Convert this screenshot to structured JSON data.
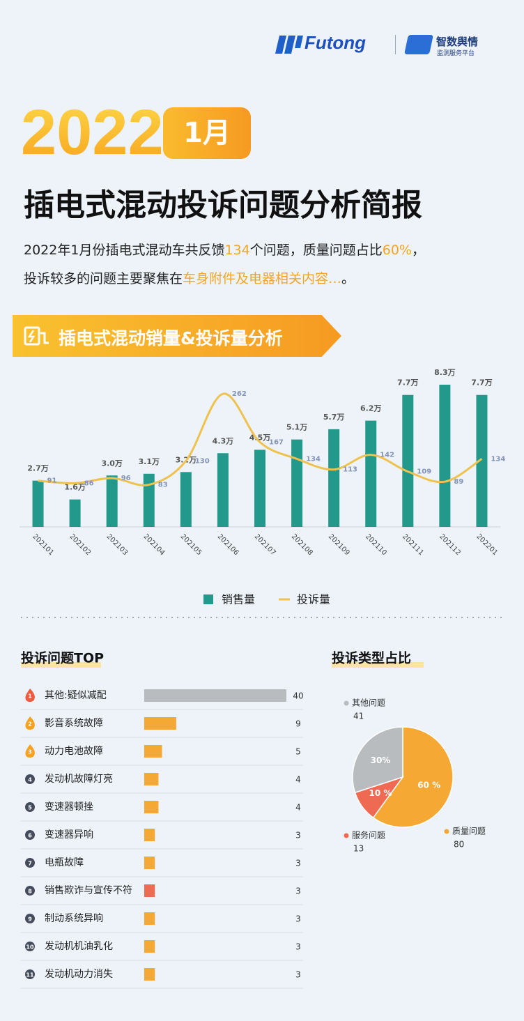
{
  "header": {
    "brand": "Futong",
    "platform_name": "智数舆情",
    "platform_sub": "监测服务平台",
    "year": "2022",
    "month": "1月",
    "title": "插电式混动投诉问题分析简报"
  },
  "summary": {
    "line1": [
      "2022年1月份插电式混动车共反馈",
      "134",
      "个问题，质量问题占比",
      "60%",
      "，"
    ],
    "line2": [
      "投诉较多的问题主要聚焦在",
      "车身附件及电器相关内容…",
      "。"
    ]
  },
  "section_title": "插电式混动销量&投诉量分析",
  "chart_data": [
    {
      "type": "combo",
      "categories": [
        "202101",
        "202102",
        "202103",
        "202104",
        "202105",
        "202106",
        "202107",
        "202108",
        "202109",
        "202110",
        "202111",
        "202112",
        "202201"
      ],
      "series": [
        {
          "name": "销售量",
          "type": "bar",
          "color": "#23998c",
          "values": [
            2.7,
            1.6,
            3.0,
            3.1,
            3.2,
            4.3,
            4.5,
            5.1,
            5.7,
            6.2,
            7.7,
            8.3,
            7.7
          ],
          "value_labels": [
            "2.7万",
            "1.6万",
            "3.0万",
            "3.1万",
            "3.2万",
            "4.3万",
            "4.5万",
            "5.1万",
            "5.7万",
            "6.2万",
            "7.7万",
            "8.3万",
            "7.7万"
          ]
        },
        {
          "name": "投诉量",
          "type": "line",
          "axis": "y2",
          "color": "#efc24f",
          "values": [
            91,
            86,
            96,
            83,
            130,
            262,
            167,
            134,
            113,
            142,
            109,
            89,
            134
          ]
        }
      ],
      "ylim": [
        0,
        9.6
      ],
      "y2lim": [
        0,
        324
      ]
    },
    {
      "type": "bar",
      "horizontal": true,
      "title": "投诉问题TOP",
      "ranks": [
        1,
        2,
        3,
        4,
        5,
        6,
        7,
        8,
        9,
        10,
        11
      ],
      "categories": [
        "其他:疑似减配",
        "影音系统故障",
        "动力电池故障",
        "发动机故障灯亮",
        "变速器顿挫",
        "变速器异响",
        "电瓶故障",
        "销售欺诈与宣传不符",
        "制动系统异响",
        "发动机机油乳化",
        "发动机动力消失"
      ],
      "values": [
        40,
        9,
        5,
        4,
        4,
        3,
        3,
        3,
        3,
        3,
        3
      ],
      "colors": [
        "#b9bcbf",
        "#f5a833",
        "#f5a833",
        "#f5a833",
        "#f5a833",
        "#f5a833",
        "#f5a833",
        "#ef6a52",
        "#f5a833",
        "#f5a833",
        "#f5a833"
      ],
      "xlim": [
        0,
        40
      ]
    },
    {
      "type": "pie",
      "title": "投诉类型占比",
      "categories": [
        "质量问题",
        "服务问题",
        "其他问题"
      ],
      "values": [
        60,
        10,
        30
      ],
      "value_labels": [
        "60 %",
        "10 %",
        "30%"
      ],
      "counts": [
        80,
        13,
        41
      ],
      "colors": [
        "#f5a833",
        "#ef6a52",
        "#b9bcbf"
      ]
    }
  ]
}
